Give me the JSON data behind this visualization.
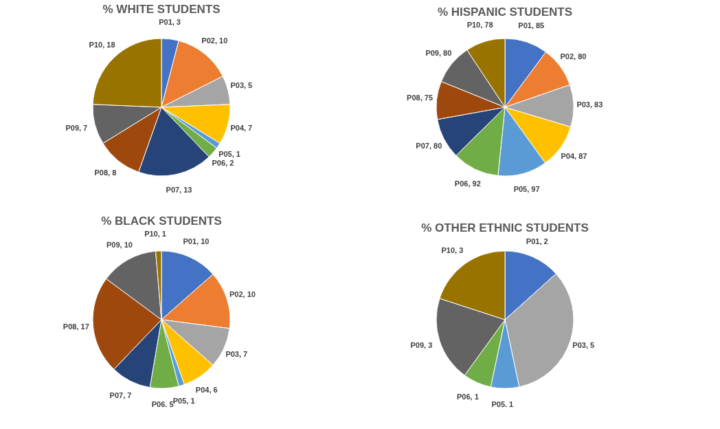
{
  "chart_data": [
    {
      "type": "pie",
      "title": "% WHITE STUDENTS",
      "categories": [
        "P01",
        "P02",
        "P03",
        "P04",
        "P05",
        "P06",
        "P07",
        "P08",
        "P09",
        "P10"
      ],
      "values": [
        3,
        10,
        5,
        7,
        1,
        2,
        13,
        8,
        7,
        18
      ],
      "colors": [
        "#4472c4",
        "#ed7d31",
        "#a5a5a5",
        "#ffc000",
        "#5b9bd5",
        "#70ad47",
        "#264478",
        "#9e480e",
        "#636363",
        "#997300"
      ],
      "value_labels": [
        ", 3",
        ", 10",
        ", 5",
        ", 7",
        ", 1",
        ", 2",
        ", 13",
        ", 8",
        ", 7",
        ", 18"
      ],
      "legend": false
    },
    {
      "type": "pie",
      "title": "% HISPANIC STUDENTS",
      "categories": [
        "P01",
        "P02",
        "P03",
        "P04",
        "P05",
        "P06",
        "P07",
        "P08",
        "P09",
        "P10"
      ],
      "values": [
        85,
        80,
        83,
        87,
        97,
        92,
        80,
        75,
        80,
        78
      ],
      "colors": [
        "#4472c4",
        "#ed7d31",
        "#a5a5a5",
        "#ffc000",
        "#5b9bd5",
        "#70ad47",
        "#264478",
        "#9e480e",
        "#636363",
        "#997300"
      ],
      "value_labels": [
        ", 85",
        ", 80",
        ", 83",
        ", 87",
        ", 97",
        ", 92",
        ", 80",
        ", 75",
        ", 80",
        ", 78"
      ],
      "legend": false
    },
    {
      "type": "pie",
      "title": "% BLACK STUDENTS",
      "categories": [
        "P01",
        "P02",
        "P03",
        "P04",
        "P05",
        "P06",
        "P07",
        "P08",
        "P09",
        "P10"
      ],
      "values": [
        10,
        10,
        7,
        6,
        1,
        5,
        7,
        17,
        10,
        1
      ],
      "colors": [
        "#4472c4",
        "#ed7d31",
        "#a5a5a5",
        "#ffc000",
        "#5b9bd5",
        "#70ad47",
        "#264478",
        "#9e480e",
        "#636363",
        "#997300"
      ],
      "value_labels": [
        ", 10",
        ", 10",
        ", 7",
        ", 6",
        ", 1",
        ". 5",
        ", 7",
        ", 17",
        ", 10",
        ", 1"
      ],
      "legend": false
    },
    {
      "type": "pie",
      "title": "% OTHER ETHNIC STUDENTS",
      "categories": [
        "P01",
        "P03",
        "P05",
        "P06",
        "P09",
        "P10"
      ],
      "values": [
        2,
        5,
        1,
        1,
        3,
        3
      ],
      "colors": [
        "#4472c4",
        "#a5a5a5",
        "#5b9bd5",
        "#70ad47",
        "#636363",
        "#997300"
      ],
      "value_labels": [
        ", 2",
        ", 5",
        ". 1",
        ", 1",
        ", 3",
        ", 3"
      ],
      "legend": false
    }
  ]
}
